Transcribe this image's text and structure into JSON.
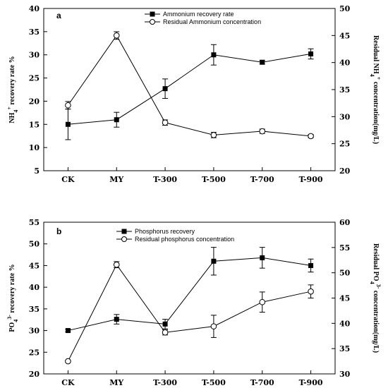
{
  "chart_data": [
    {
      "type": "line",
      "panel_label": "a",
      "categories": [
        "CK",
        "MY",
        "T-300",
        "T-500",
        "T-700",
        "T-900"
      ],
      "left_axis": {
        "label_main": "NH",
        "label_sub": "4",
        "label_sup": "+",
        "label_rest": " recovery rate %",
        "ylim": [
          5,
          40
        ],
        "ticks": [
          "5",
          "10",
          "15",
          "20",
          "25",
          "30",
          "35",
          "40"
        ]
      },
      "right_axis": {
        "label_main": "Residual NH",
        "label_sub": "4",
        "label_sup": "+",
        "label_rest": " concentration(mg/L)",
        "ylim": [
          20,
          50
        ],
        "ticks": [
          "20",
          "25",
          "30",
          "35",
          "40",
          "45",
          "50"
        ]
      },
      "series": [
        {
          "name": "Ammonium recovery rate",
          "axis": "left",
          "marker": "filled-square",
          "values": [
            15.0,
            16.0,
            22.7,
            30.0,
            28.4,
            30.2
          ],
          "errors": [
            3.3,
            1.6,
            2.1,
            2.2,
            0.4,
            1.1
          ]
        },
        {
          "name": "Residual Ammonium concentration",
          "axis": "right",
          "marker": "open-circle",
          "values": [
            32.1,
            45.0,
            28.9,
            26.6,
            27.3,
            26.4
          ],
          "errors": [
            0.7,
            0.7,
            0.5,
            0.5,
            0.4,
            0.3
          ]
        }
      ]
    },
    {
      "type": "line",
      "panel_label": "b",
      "categories": [
        "CK",
        "MY",
        "T-300",
        "T-500",
        "T-700",
        "T-900"
      ],
      "left_axis": {
        "label_main": "PO",
        "label_sub": "4",
        "label_sup": "3-",
        "label_rest": " recovery rate %",
        "ylim": [
          20,
          55
        ],
        "ticks": [
          "20",
          "25",
          "30",
          "35",
          "40",
          "45",
          "50",
          "55"
        ]
      },
      "right_axis": {
        "label_main": "Residual PO",
        "label_sub": "4",
        "label_sup": "3-",
        "label_rest": " concentration(mg/L)",
        "ylim": [
          30,
          60
        ],
        "ticks": [
          "30",
          "35",
          "40",
          "45",
          "50",
          "55",
          "60"
        ]
      },
      "series": [
        {
          "name": "Phosphorus recovery",
          "axis": "left",
          "marker": "filled-square",
          "values": [
            30.0,
            32.6,
            31.5,
            46.0,
            46.8,
            45.0
          ],
          "errors": [
            0.3,
            1.1,
            1.1,
            3.2,
            2.4,
            1.5
          ]
        },
        {
          "name": "Residual phosphorus concentration",
          "axis": "right",
          "marker": "open-circle",
          "values": [
            32.5,
            51.6,
            38.2,
            39.4,
            44.2,
            46.3
          ],
          "errors": [
            0.2,
            0.6,
            0.5,
            2.2,
            2.0,
            1.3
          ]
        }
      ]
    }
  ]
}
